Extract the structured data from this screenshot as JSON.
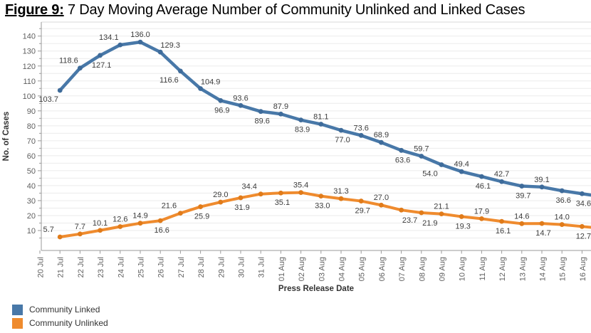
{
  "title": {
    "prefix": "Figure 9:",
    "rest": " 7 Day Moving Average Number of Community Unlinked and Linked Cases"
  },
  "chart_data": {
    "type": "line",
    "xlabel": "Press Release Date",
    "ylabel": "No. of Cases",
    "ylim": [
      0,
      149
    ],
    "ytick_interval": 10,
    "yminor_tick_interval": 5,
    "yticks": [
      10,
      20,
      30,
      40,
      50,
      60,
      70,
      80,
      90,
      100,
      110,
      120,
      130,
      140
    ],
    "grid": "horizontal minor gridlines every 5, light gray",
    "legend_position": "bottom-left",
    "categories": [
      "20 Jul",
      "21 Jul",
      "22 Jul",
      "23 Jul",
      "24 Jul",
      "25 Jul",
      "26 Jul",
      "27 Jul",
      "28 Jul",
      "29 Jul",
      "30 Jul",
      "31 Jul",
      "01 Aug",
      "02 Aug",
      "03 Aug",
      "04 Aug",
      "05 Aug",
      "06 Aug",
      "07 Aug",
      "08 Aug",
      "09 Aug",
      "10 Aug",
      "11 Aug",
      "12 Aug",
      "13 Aug",
      "14 Aug",
      "15 Aug",
      "16 Aug"
    ],
    "series": [
      {
        "name": "Community Linked",
        "color": "#4878A8",
        "marker_color": "#3E6B9A",
        "start_category": "21 Jul",
        "values": [
          103.7,
          118.6,
          127.1,
          134.1,
          136.0,
          129.3,
          116.6,
          104.9,
          96.9,
          93.6,
          89.6,
          87.9,
          83.9,
          81.1,
          77.0,
          73.6,
          68.9,
          63.6,
          59.7,
          54.0,
          49.4,
          46.1,
          42.7,
          39.7,
          39.1,
          36.6,
          34.6
        ],
        "labels": [
          "103.7",
          "118.6",
          "127.1",
          "134.1",
          "136.0",
          "129.3",
          "116.6",
          "104.9",
          "96.9",
          "93.6",
          "89.6",
          "87.9",
          "83.9",
          "81.1",
          "77.0",
          "73.6",
          "68.9",
          "63.6",
          "59.7",
          "54.0",
          "49.4",
          "46.1",
          "42.7",
          "39.7",
          "39.1",
          "36.6",
          "34.6"
        ],
        "label_positions": [
          "below-left",
          "above-left",
          "below",
          "above-left",
          "above",
          "above-right",
          "below-left",
          "above-right",
          "below",
          "above",
          "below",
          "above",
          "below",
          "above",
          "below",
          "above",
          "above",
          "below",
          "above",
          "below-left",
          "above",
          "below",
          "above",
          "below",
          "above",
          "below",
          "below"
        ]
      },
      {
        "name": "Community Unlinked",
        "color": "#EF8B2E",
        "marker_color": "#E07B1A",
        "start_category": "21 Jul",
        "values": [
          5.7,
          7.7,
          10.1,
          12.6,
          14.9,
          16.6,
          21.6,
          25.9,
          29.0,
          31.9,
          34.4,
          35.1,
          35.4,
          33.0,
          31.3,
          29.7,
          27.0,
          23.7,
          21.9,
          21.1,
          19.3,
          17.9,
          16.1,
          14.6,
          14.7,
          14.0,
          12.7
        ],
        "labels": [
          "5.7",
          "7.7",
          "10.1",
          "12.6",
          "14.9",
          "16.6",
          "21.6",
          "25.9",
          "29.0",
          "31.9",
          "34.4",
          "35.1",
          "35.4",
          "33.0",
          "31.3",
          "29.7",
          "27.0",
          "23.7",
          "21.9",
          "21.1",
          "19.3",
          "17.9",
          "16.1",
          "14.6",
          "14.7",
          "14.0",
          "12.7"
        ],
        "label_positions": [
          "above-left",
          "above",
          "above",
          "above",
          "above",
          "below",
          "above-left",
          "below",
          "above",
          "below",
          "above-left",
          "below",
          "above",
          "below",
          "above",
          "below",
          "above",
          "below-right",
          "below-right",
          "above",
          "below",
          "above",
          "below",
          "above",
          "below",
          "above",
          "below"
        ]
      }
    ]
  },
  "colors": {
    "gridline": "#EBEBEB",
    "frame": "#D9D9D9",
    "axis": "#9A9A9A",
    "tick_label": "#5F5F5F",
    "data_label": "#3D3D3D",
    "axis_title": "#333333"
  }
}
